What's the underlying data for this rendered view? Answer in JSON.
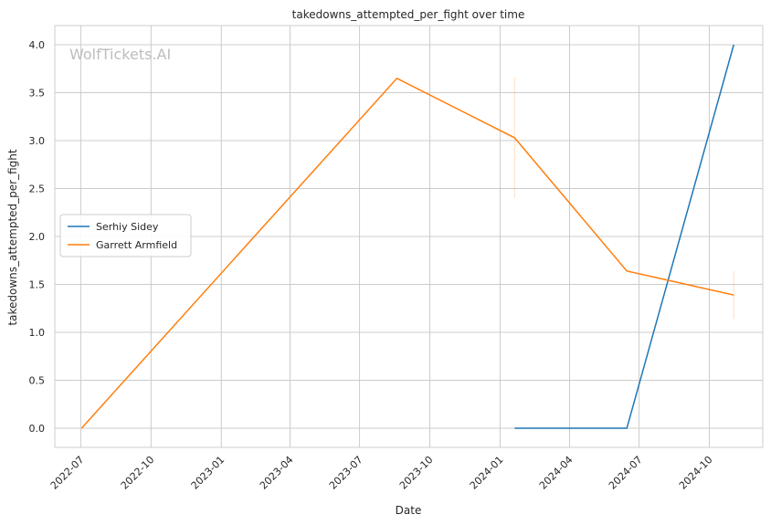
{
  "chart_data": {
    "type": "line",
    "title": "takedowns_attempted_per_fight over time",
    "xlabel": "Date",
    "ylabel": "takedowns_attempted_per_fight",
    "watermark": "WolfTickets.AI",
    "xlim": [
      "2022-05-28",
      "2024-12-10"
    ],
    "ylim": [
      -0.2,
      4.2
    ],
    "x_ticks": [
      "2022-07",
      "2022-10",
      "2023-01",
      "2023-04",
      "2023-07",
      "2023-10",
      "2024-01",
      "2024-04",
      "2024-07",
      "2024-10"
    ],
    "y_ticks": [
      "0.0",
      "0.5",
      "1.0",
      "1.5",
      "2.0",
      "2.5",
      "3.0",
      "3.5",
      "4.0"
    ],
    "grid": true,
    "legend_position": "center-left",
    "series": [
      {
        "name": "Serhiy Sidey",
        "color": "#1f77b4",
        "points": [
          {
            "x": "2024-01-20",
            "y": 0.0
          },
          {
            "x": "2024-06-15",
            "y": 0.0
          },
          {
            "x": "2024-11-02",
            "y": 4.0
          }
        ]
      },
      {
        "name": "Garrett Armfield",
        "color": "#ff7f0e",
        "points": [
          {
            "x": "2022-07-02",
            "y": 0.0
          },
          {
            "x": "2023-08-19",
            "y": 3.65
          },
          {
            "x": "2024-01-20",
            "y": 3.03
          },
          {
            "x": "2024-06-15",
            "y": 1.64
          },
          {
            "x": "2024-11-02",
            "y": 1.39
          }
        ],
        "error_bars": [
          {
            "x": "2024-01-20",
            "low": 2.4,
            "high": 3.66
          },
          {
            "x": "2024-11-02",
            "low": 1.14,
            "high": 1.64
          }
        ]
      }
    ]
  }
}
